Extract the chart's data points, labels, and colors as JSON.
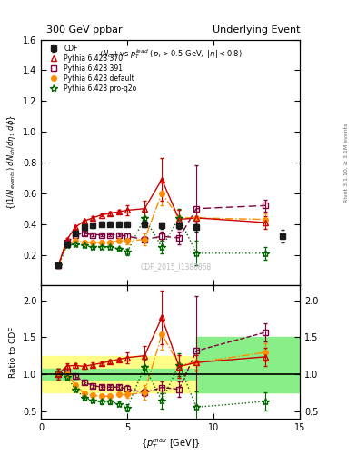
{
  "title_left": "300 GeV ppbar",
  "title_right": "Underlying Event",
  "watermark": "CDF_2015_I1388868",
  "ylabel_main": "$(1/N_{events}) dN_{ch}/d\\eta d\\phi$",
  "ylabel_ratio": "Ratio to CDF",
  "xlabel": "$\\{p_T^{max}$ [GeV]$\\}$",
  "xlim": [
    0,
    15
  ],
  "ylim_main": [
    0.0,
    1.6
  ],
  "ylim_ratio": [
    0.4,
    2.2
  ],
  "yticks_main": [
    0.2,
    0.4,
    0.6,
    0.8,
    1.0,
    1.2,
    1.4,
    1.6
  ],
  "yticks_ratio": [
    0.5,
    1.0,
    1.5,
    2.0
  ],
  "xticks": [
    0,
    5,
    10,
    15
  ],
  "cdf_x": [
    1.0,
    1.5,
    2.0,
    2.5,
    3.0,
    3.5,
    4.0,
    4.5,
    5.0,
    6.0,
    7.0,
    8.0,
    9.0,
    14.0
  ],
  "cdf_y": [
    0.13,
    0.27,
    0.34,
    0.38,
    0.39,
    0.4,
    0.4,
    0.4,
    0.4,
    0.4,
    0.39,
    0.39,
    0.38,
    0.32
  ],
  "cdf_yerr": [
    0.015,
    0.015,
    0.015,
    0.015,
    0.015,
    0.015,
    0.015,
    0.015,
    0.015,
    0.02,
    0.02,
    0.02,
    0.03,
    0.04
  ],
  "py370_x": [
    1.0,
    1.5,
    2.0,
    2.5,
    3.0,
    3.5,
    4.0,
    4.5,
    5.0,
    6.0,
    7.0,
    8.0,
    9.0,
    13.0
  ],
  "py370_y": [
    0.13,
    0.3,
    0.38,
    0.42,
    0.44,
    0.46,
    0.47,
    0.48,
    0.49,
    0.5,
    0.69,
    0.43,
    0.44,
    0.41
  ],
  "py370_yerr": [
    0.01,
    0.01,
    0.01,
    0.01,
    0.01,
    0.01,
    0.01,
    0.01,
    0.03,
    0.05,
    0.14,
    0.06,
    0.04,
    0.04
  ],
  "py391_x": [
    1.0,
    1.5,
    2.0,
    2.5,
    3.0,
    3.5,
    4.0,
    4.5,
    5.0,
    6.0,
    7.0,
    8.0,
    9.0,
    13.0
  ],
  "py391_y": [
    0.13,
    0.28,
    0.33,
    0.34,
    0.33,
    0.33,
    0.33,
    0.33,
    0.32,
    0.3,
    0.32,
    0.31,
    0.5,
    0.52
  ],
  "py391_yerr": [
    0.01,
    0.01,
    0.01,
    0.01,
    0.01,
    0.01,
    0.01,
    0.01,
    0.02,
    0.02,
    0.03,
    0.04,
    0.28,
    0.04
  ],
  "pydef_x": [
    1.0,
    1.5,
    2.0,
    2.5,
    3.0,
    3.5,
    4.0,
    4.5,
    5.0,
    6.0,
    7.0,
    8.0,
    9.0,
    13.0
  ],
  "pydef_y": [
    0.13,
    0.27,
    0.29,
    0.28,
    0.28,
    0.28,
    0.28,
    0.29,
    0.29,
    0.3,
    0.6,
    0.44,
    0.44,
    0.43
  ],
  "pydef_yerr": [
    0.01,
    0.01,
    0.01,
    0.01,
    0.01,
    0.01,
    0.01,
    0.01,
    0.02,
    0.04,
    0.08,
    0.05,
    0.04,
    0.04
  ],
  "pyq2o_x": [
    1.0,
    1.5,
    2.0,
    2.5,
    3.0,
    3.5,
    4.0,
    4.5,
    5.0,
    6.0,
    7.0,
    8.0,
    9.0,
    13.0
  ],
  "pyq2o_y": [
    0.13,
    0.26,
    0.27,
    0.26,
    0.25,
    0.25,
    0.25,
    0.24,
    0.22,
    0.44,
    0.25,
    0.44,
    0.21,
    0.21
  ],
  "pyq2o_yerr": [
    0.01,
    0.01,
    0.01,
    0.01,
    0.01,
    0.01,
    0.01,
    0.01,
    0.02,
    0.04,
    0.04,
    0.06,
    0.08,
    0.04
  ],
  "color_cdf": "#1a1a1a",
  "color_py370": "#cc0000",
  "color_py391": "#800040",
  "color_pydef": "#ff8c00",
  "color_pyq2o": "#006600",
  "bg_yellow": "#ffff88",
  "bg_green": "#88ee88"
}
